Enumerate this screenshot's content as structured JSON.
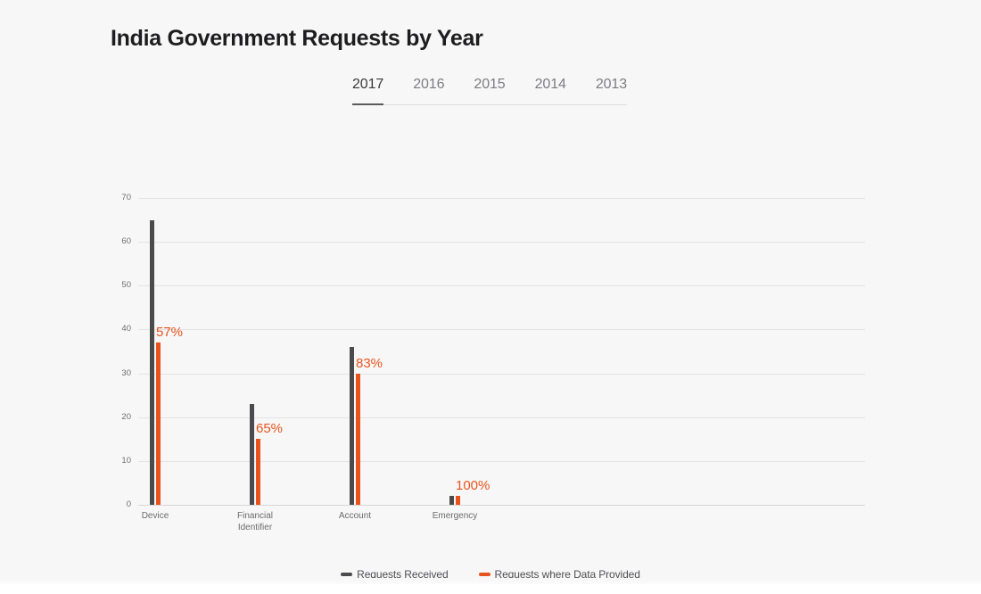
{
  "page": {
    "title": "India Government Requests by Year"
  },
  "tabs": [
    {
      "label": "2017",
      "active": true
    },
    {
      "label": "2016",
      "active": false
    },
    {
      "label": "2015",
      "active": false
    },
    {
      "label": "2014",
      "active": false
    },
    {
      "label": "2013",
      "active": false
    }
  ],
  "chart_data": {
    "type": "bar",
    "title": "India Government Requests by Year",
    "categories": [
      "Device",
      "Financial Identifier",
      "Account",
      "Emergency"
    ],
    "series": [
      {
        "name": "Requests Received",
        "color": "#4b4b4d",
        "values": [
          65,
          23,
          36,
          2
        ]
      },
      {
        "name": "Requests where Data Provided",
        "color": "#e8531d",
        "values": [
          37,
          15,
          30,
          2
        ]
      }
    ],
    "bar_labels": [
      "57%",
      "65%",
      "83%",
      "100%"
    ],
    "bar_label_color": "#e8531d",
    "xlabel": "",
    "ylabel": "",
    "ylim": [
      0,
      70
    ],
    "yticks": [
      0,
      10,
      20,
      30,
      40,
      50,
      60,
      70
    ],
    "grid": true,
    "legend_position": "bottom"
  }
}
